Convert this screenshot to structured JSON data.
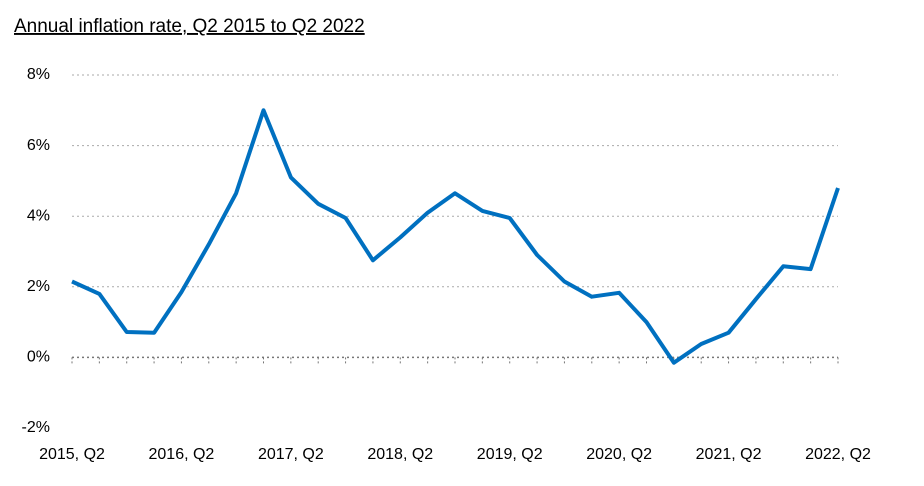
{
  "chart_data": {
    "type": "line",
    "title": "Annual inflation rate, Q2 2015 to Q2 2022",
    "categories": [
      "2015, Q2",
      null,
      null,
      null,
      "2016, Q2",
      null,
      null,
      null,
      "2017, Q2",
      null,
      null,
      null,
      "2018, Q2",
      null,
      null,
      null,
      "2019, Q2",
      null,
      null,
      null,
      "2020, Q2",
      null,
      null,
      null,
      "2021, Q2",
      null,
      null,
      null,
      "2022, Q2"
    ],
    "series": [
      {
        "name": "Annual inflation rate",
        "color": "#0070c0",
        "values": [
          2.15,
          1.8,
          0.72,
          0.7,
          1.85,
          3.2,
          4.65,
          7.0,
          5.1,
          4.35,
          3.95,
          2.75,
          3.4,
          4.1,
          4.65,
          4.15,
          3.95,
          2.9,
          2.15,
          1.72,
          1.83,
          1.0,
          -0.15,
          0.38,
          0.7,
          1.65,
          2.58,
          2.5,
          4.8
        ]
      }
    ],
    "ylim": [
      -2,
      8
    ],
    "yticks": [
      {
        "value": -2,
        "label": "-2%"
      },
      {
        "value": 0,
        "label": "0%"
      },
      {
        "value": 2,
        "label": "2%"
      },
      {
        "value": 4,
        "label": "4%"
      },
      {
        "value": 6,
        "label": "6%"
      },
      {
        "value": 8,
        "label": "8%"
      }
    ],
    "grid": true
  }
}
